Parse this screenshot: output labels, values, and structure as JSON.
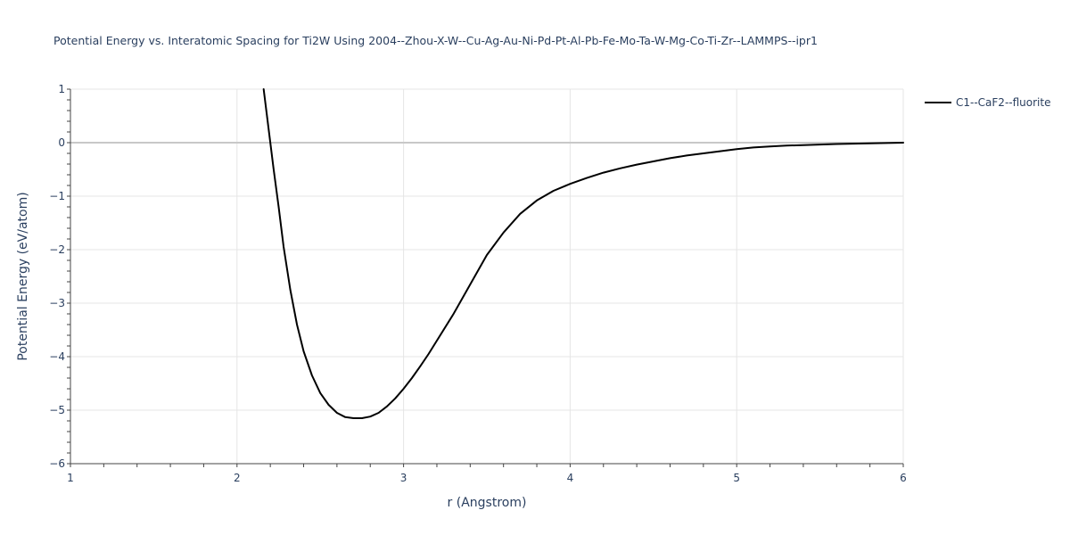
{
  "chart_data": {
    "type": "line",
    "title": "Potential Energy vs. Interatomic Spacing for Ti2W Using 2004--Zhou-X-W--Cu-Ag-Au-Ni-Pd-Pt-Al-Pb-Fe-Mo-Ta-W-Mg-Co-Ti-Zr--LAMMPS--ipr1",
    "xlabel": "r (Angstrom)",
    "ylabel": "Potential Energy (eV/atom)",
    "xlim": [
      1,
      6
    ],
    "ylim": [
      -6,
      1
    ],
    "x_ticks": [
      "1",
      "2",
      "3",
      "4",
      "5",
      "6"
    ],
    "y_ticks": [
      "1",
      "0",
      "−1",
      "−2",
      "−3",
      "−4",
      "−5",
      "−6"
    ],
    "grid": true,
    "legend_position": "top-right",
    "series": [
      {
        "name": "C1--CaF2--fluorite",
        "color": "#000000",
        "x": [
          2.16,
          2.18,
          2.2,
          2.22,
          2.25,
          2.28,
          2.32,
          2.36,
          2.4,
          2.45,
          2.5,
          2.55,
          2.6,
          2.65,
          2.7,
          2.75,
          2.8,
          2.85,
          2.9,
          2.95,
          3.0,
          3.05,
          3.1,
          3.15,
          3.2,
          3.3,
          3.4,
          3.5,
          3.6,
          3.7,
          3.8,
          3.9,
          4.0,
          4.1,
          4.2,
          4.3,
          4.4,
          4.5,
          4.6,
          4.7,
          4.8,
          4.9,
          5.0,
          5.1,
          5.2,
          5.3,
          5.4,
          5.5,
          5.6,
          5.7,
          5.8,
          5.9,
          6.0
        ],
        "y": [
          1.0,
          0.5,
          0.0,
          -0.5,
          -1.2,
          -1.95,
          -2.75,
          -3.4,
          -3.9,
          -4.35,
          -4.68,
          -4.9,
          -5.05,
          -5.13,
          -5.15,
          -5.15,
          -5.12,
          -5.05,
          -4.93,
          -4.78,
          -4.6,
          -4.4,
          -4.18,
          -3.95,
          -3.7,
          -3.2,
          -2.65,
          -2.1,
          -1.68,
          -1.33,
          -1.08,
          -0.9,
          -0.77,
          -0.66,
          -0.56,
          -0.48,
          -0.41,
          -0.35,
          -0.29,
          -0.24,
          -0.2,
          -0.16,
          -0.12,
          -0.09,
          -0.07,
          -0.055,
          -0.045,
          -0.035,
          -0.025,
          -0.018,
          -0.012,
          -0.006,
          0.0
        ]
      }
    ]
  },
  "colors": {
    "grid": "#e5e5e5",
    "zero_line": "#c8c8c8",
    "axis": "#444444",
    "text": "#2a3f5f"
  }
}
